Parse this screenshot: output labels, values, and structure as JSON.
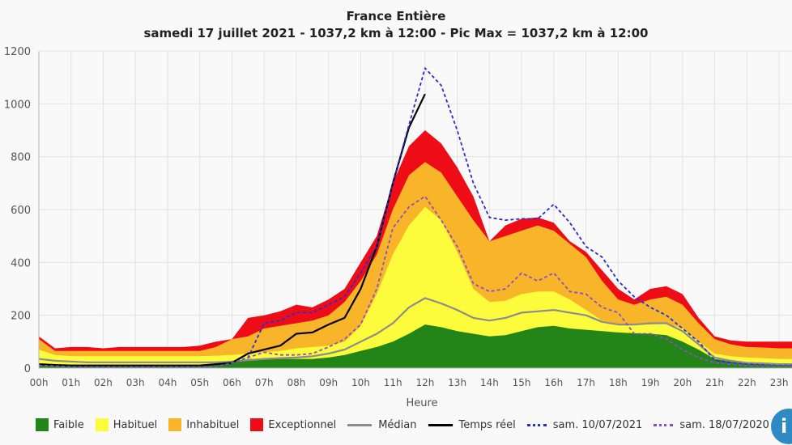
{
  "chart_data": {
    "type": "area",
    "title": "France Entière",
    "subtitle": "samedi 17 juillet 2021 - 1037,2 km à 12:00 - Pic Max = 1037,2 km à 12:00",
    "xlabel": "Heure",
    "ylabel": "",
    "ylim": [
      0,
      1200
    ],
    "xlim": [
      0,
      23.4
    ],
    "yticks": [
      0,
      200,
      400,
      600,
      800,
      1000,
      1200
    ],
    "xtick_labels": [
      "00h",
      "01h",
      "02h",
      "03h",
      "04h",
      "05h",
      "06h",
      "07h",
      "08h",
      "09h",
      "10h",
      "11h",
      "12h",
      "13h",
      "14h",
      "15h",
      "16h",
      "17h",
      "18h",
      "19h",
      "20h",
      "21h",
      "22h",
      "23h"
    ],
    "grid": true,
    "legend_position": "bottom",
    "x": [
      0,
      0.5,
      1,
      1.5,
      2,
      2.5,
      3,
      3.5,
      4,
      4.5,
      5,
      5.5,
      6,
      6.5,
      7,
      7.5,
      8,
      8.5,
      9,
      9.5,
      10,
      10.5,
      11,
      11.5,
      12,
      12.5,
      13,
      13.5,
      14,
      14.5,
      15,
      15.5,
      16,
      16.5,
      17,
      17.5,
      18,
      18.5,
      19,
      19.5,
      20,
      20.5,
      21,
      21.5,
      22,
      22.5,
      23,
      23.5
    ],
    "bands": [
      {
        "name": "Exceptionnel",
        "color": "#ee0c17",
        "values": [
          120,
          75,
          80,
          80,
          75,
          80,
          80,
          80,
          80,
          80,
          85,
          100,
          110,
          190,
          200,
          215,
          240,
          230,
          260,
          300,
          400,
          500,
          700,
          840,
          900,
          850,
          760,
          650,
          480,
          540,
          565,
          570,
          550,
          480,
          440,
          370,
          300,
          260,
          300,
          310,
          280,
          190,
          120,
          105,
          100,
          100,
          100,
          100
        ]
      },
      {
        "name": "Inhabituel",
        "color": "#f9b52a",
        "values": [
          110,
          65,
          65,
          65,
          65,
          65,
          65,
          65,
          65,
          65,
          65,
          80,
          110,
          120,
          150,
          160,
          170,
          180,
          200,
          250,
          330,
          430,
          600,
          730,
          780,
          740,
          650,
          560,
          480,
          500,
          520,
          540,
          520,
          470,
          420,
          330,
          260,
          240,
          260,
          270,
          240,
          170,
          110,
          90,
          80,
          78,
          75,
          75
        ]
      },
      {
        "name": "Habituel",
        "color": "#fdfc3c",
        "values": [
          70,
          50,
          45,
          45,
          45,
          45,
          45,
          45,
          45,
          45,
          45,
          47,
          50,
          55,
          60,
          65,
          75,
          80,
          85,
          100,
          160,
          280,
          430,
          540,
          610,
          560,
          440,
          300,
          250,
          255,
          280,
          290,
          290,
          260,
          220,
          180,
          165,
          165,
          165,
          170,
          150,
          100,
          55,
          45,
          40,
          38,
          35,
          35
        ]
      },
      {
        "name": "Faible",
        "color": "#238417",
        "values": [
          15,
          12,
          10,
          10,
          10,
          10,
          10,
          10,
          10,
          10,
          10,
          12,
          20,
          35,
          35,
          35,
          35,
          35,
          40,
          50,
          65,
          80,
          100,
          130,
          165,
          155,
          140,
          130,
          120,
          125,
          140,
          155,
          160,
          150,
          145,
          140,
          135,
          132,
          130,
          125,
          100,
          70,
          35,
          25,
          20,
          18,
          15,
          15
        ]
      }
    ],
    "series": [
      {
        "name": "Médian",
        "color": "#8c8c8c",
        "dash": "solid",
        "values": [
          35,
          28,
          25,
          22,
          22,
          22,
          22,
          22,
          22,
          22,
          22,
          22,
          25,
          30,
          35,
          38,
          40,
          45,
          55,
          70,
          100,
          130,
          170,
          230,
          265,
          245,
          220,
          190,
          180,
          190,
          210,
          215,
          220,
          210,
          200,
          175,
          165,
          165,
          170,
          170,
          140,
          90,
          40,
          28,
          20,
          18,
          15,
          15
        ]
      },
      {
        "name": "Temps réel",
        "color": "#000000",
        "dash": "solid",
        "values": [
          15,
          12,
          10,
          10,
          10,
          10,
          10,
          10,
          10,
          10,
          10,
          15,
          20,
          55,
          70,
          85,
          130,
          135,
          165,
          190,
          300,
          460,
          700,
          910,
          1037.2,
          null,
          null,
          null,
          null,
          null,
          null,
          null,
          null,
          null,
          null,
          null,
          null,
          null,
          null,
          null,
          null,
          null,
          null,
          null,
          null,
          null,
          null,
          null
        ]
      },
      {
        "name": "sam. 10/07/2021",
        "color": "#2b2bd6",
        "dash": "dotted",
        "values": [
          10,
          8,
          5,
          5,
          5,
          5,
          5,
          5,
          5,
          5,
          5,
          5,
          20,
          40,
          170,
          180,
          210,
          210,
          240,
          270,
          360,
          460,
          700,
          920,
          1135,
          1070,
          900,
          700,
          570,
          560,
          565,
          565,
          620,
          550,
          460,
          420,
          330,
          270,
          230,
          200,
          150,
          100,
          30,
          20,
          15,
          12,
          10,
          10
        ]
      },
      {
        "name": "sam. 18/07/2020",
        "color": "#8a4fc4",
        "dash": "dotted",
        "values": [
          10,
          8,
          5,
          5,
          5,
          5,
          5,
          5,
          5,
          5,
          5,
          5,
          20,
          40,
          60,
          50,
          50,
          55,
          80,
          110,
          165,
          300,
          530,
          610,
          650,
          560,
          460,
          320,
          290,
          300,
          360,
          330,
          360,
          290,
          280,
          230,
          210,
          130,
          130,
          110,
          70,
          40,
          20,
          15,
          10,
          8,
          8,
          8
        ]
      }
    ]
  },
  "legend": [
    {
      "label": "Faible",
      "kind": "box",
      "color": "#238417"
    },
    {
      "label": "Habituel",
      "kind": "box",
      "color": "#fdfc3c"
    },
    {
      "label": "Inhabituel",
      "kind": "box",
      "color": "#f9b52a"
    },
    {
      "label": "Exceptionnel",
      "kind": "box",
      "color": "#ee0c17"
    },
    {
      "label": "Médian",
      "kind": "line",
      "color": "#8c8c8c"
    },
    {
      "label": "Temps réel",
      "kind": "line",
      "color": "#000000"
    },
    {
      "label": "sam. 10/07/2021",
      "kind": "dots",
      "color": "#2b2bd6"
    },
    {
      "label": "sam. 18/07/2020",
      "kind": "dots",
      "color": "#8a4fc4"
    }
  ],
  "info_button": {
    "label": "i",
    "icon": "info-icon",
    "color": "#2f8ac4"
  }
}
